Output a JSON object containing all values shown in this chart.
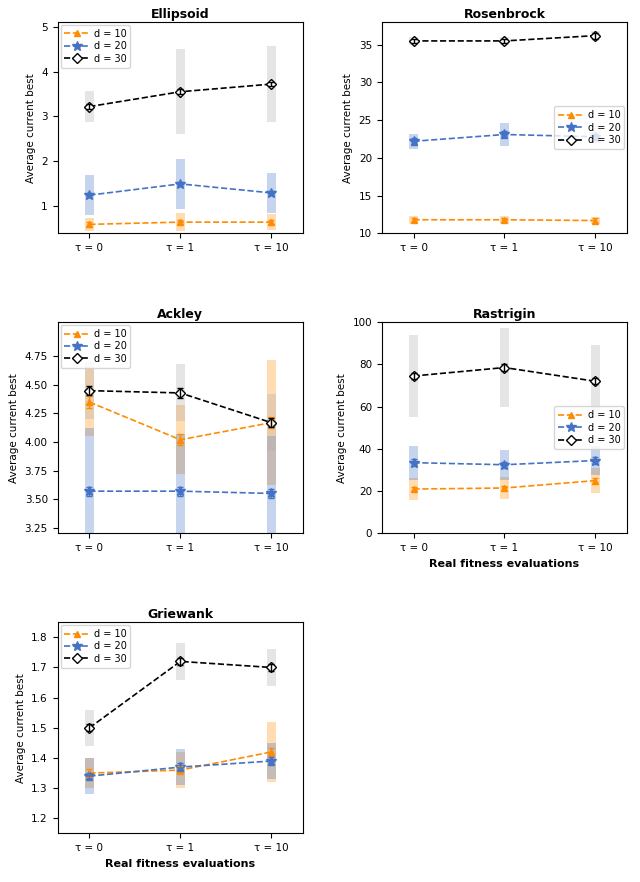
{
  "x_ticks": [
    0,
    1,
    2
  ],
  "x_labels": [
    "τ = 0",
    "τ = 1",
    "τ = 10"
  ],
  "xlabel": "Real fitness evaluations",
  "ylabel": "Average current best",
  "subplots": [
    {
      "title": "Ellipsoid",
      "ylim": [
        0.4,
        5.1
      ],
      "yticks": [
        1,
        2,
        3,
        4,
        5
      ],
      "series": [
        {
          "label": "d = 10",
          "color": "#FF8C00",
          "marker": "^",
          "y": [
            0.6,
            0.65,
            0.65
          ],
          "yerr": [
            0.05,
            0.05,
            0.05
          ],
          "bar_lo": [
            0.45,
            0.45,
            0.47
          ],
          "bar_hi": [
            0.75,
            0.85,
            0.83
          ],
          "bar_color": "#FF8C00"
        },
        {
          "label": "d = 20",
          "color": "#4472C4",
          "marker": "*",
          "y": [
            1.25,
            1.5,
            1.3
          ],
          "yerr": [
            0.05,
            0.05,
            0.05
          ],
          "bar_lo": [
            0.8,
            0.95,
            0.85
          ],
          "bar_hi": [
            1.7,
            2.05,
            1.75
          ],
          "bar_color": "#4472C4"
        },
        {
          "label": "d = 30",
          "color": "#000000",
          "marker": "D",
          "y": [
            3.22,
            3.55,
            3.72
          ],
          "yerr": [
            0.05,
            0.05,
            0.05
          ],
          "bar_lo": [
            2.87,
            2.6,
            2.87
          ],
          "bar_hi": [
            3.57,
            4.5,
            4.57
          ],
          "bar_color": "#AAAAAA"
        }
      ],
      "legend_loc": "upper left"
    },
    {
      "title": "Rosenbrock",
      "ylim": [
        10,
        38
      ],
      "yticks": [
        10,
        15,
        20,
        25,
        30,
        35
      ],
      "series": [
        {
          "label": "d = 10",
          "color": "#FF8C00",
          "marker": "^",
          "y": [
            11.8,
            11.8,
            11.7
          ],
          "yerr": [
            0.3,
            0.3,
            0.3
          ],
          "bar_lo": [
            11.3,
            11.3,
            11.2
          ],
          "bar_hi": [
            12.3,
            12.3,
            12.2
          ],
          "bar_color": "#FF8C00"
        },
        {
          "label": "d = 20",
          "color": "#4472C4",
          "marker": "*",
          "y": [
            22.2,
            23.1,
            22.8
          ],
          "yerr": [
            0.5,
            0.5,
            0.3
          ],
          "bar_lo": [
            21.2,
            21.6,
            22.0
          ],
          "bar_hi": [
            23.2,
            24.6,
            23.6
          ],
          "bar_color": "#4472C4"
        },
        {
          "label": "d = 30",
          "color": "#000000",
          "marker": "D",
          "y": [
            35.5,
            35.5,
            36.2
          ],
          "yerr": [
            0.3,
            0.3,
            0.4
          ],
          "bar_lo": [
            35.0,
            35.0,
            35.6
          ],
          "bar_hi": [
            36.0,
            36.0,
            36.8
          ],
          "bar_color": "#AAAAAA"
        }
      ],
      "legend_loc": "center right"
    },
    {
      "title": "Ackley",
      "ylim": [
        3.2,
        5.05
      ],
      "yticks": [
        3.25,
        3.5,
        3.75,
        4.0,
        4.25,
        4.5,
        4.75
      ],
      "series": [
        {
          "label": "d = 10",
          "color": "#FF8C00",
          "marker": "^",
          "y": [
            4.35,
            4.02,
            4.17
          ],
          "yerr": [
            0.05,
            0.05,
            0.05
          ],
          "bar_lo": [
            4.05,
            3.72,
            3.62
          ],
          "bar_hi": [
            4.65,
            4.32,
            4.72
          ],
          "bar_color": "#FF8C00"
        },
        {
          "label": "d = 20",
          "color": "#4472C4",
          "marker": "*",
          "y": [
            3.57,
            3.57,
            3.55
          ],
          "yerr": [
            0.04,
            0.04,
            0.04
          ],
          "bar_lo": [
            3.02,
            3.07,
            3.05
          ],
          "bar_hi": [
            4.12,
            4.07,
            4.05
          ],
          "bar_color": "#4472C4"
        },
        {
          "label": "d = 30",
          "color": "#000000",
          "marker": "D",
          "y": [
            4.45,
            4.43,
            4.17
          ],
          "yerr": [
            0.04,
            0.04,
            0.04
          ],
          "bar_lo": [
            4.2,
            4.18,
            3.92
          ],
          "bar_hi": [
            4.7,
            4.68,
            4.42
          ],
          "bar_color": "#AAAAAA"
        }
      ],
      "legend_loc": "upper left"
    },
    {
      "title": "Rastrigin",
      "ylim": [
        0,
        100
      ],
      "yticks": [
        0,
        20,
        40,
        60,
        80,
        100
      ],
      "series": [
        {
          "label": "d = 10",
          "color": "#FF8C00",
          "marker": "^",
          "y": [
            21.0,
            21.5,
            25.0
          ],
          "yerr": [
            1.0,
            1.0,
            1.0
          ],
          "bar_lo": [
            16.0,
            16.5,
            19.0
          ],
          "bar_hi": [
            26.0,
            26.5,
            31.0
          ],
          "bar_color": "#FF8C00"
        },
        {
          "label": "d = 20",
          "color": "#4472C4",
          "marker": "*",
          "y": [
            33.5,
            32.5,
            34.5
          ],
          "yerr": [
            1.5,
            1.5,
            1.5
          ],
          "bar_lo": [
            25.5,
            25.5,
            27.5
          ],
          "bar_hi": [
            41.5,
            39.5,
            41.5
          ],
          "bar_color": "#4472C4"
        },
        {
          "label": "d = 30",
          "color": "#000000",
          "marker": "D",
          "y": [
            74.5,
            78.5,
            72.0
          ],
          "yerr": [
            1.5,
            1.5,
            1.5
          ],
          "bar_lo": [
            55.0,
            60.0,
            55.0
          ],
          "bar_hi": [
            94.0,
            97.0,
            89.0
          ],
          "bar_color": "#AAAAAA"
        }
      ],
      "legend_loc": "center right"
    },
    {
      "title": "Griewank",
      "ylim": [
        1.15,
        1.85
      ],
      "yticks": [
        1.2,
        1.3,
        1.4,
        1.5,
        1.6,
        1.7,
        1.8
      ],
      "series": [
        {
          "label": "d = 10",
          "color": "#FF8C00",
          "marker": "^",
          "y": [
            1.35,
            1.36,
            1.42
          ],
          "yerr": [
            0.012,
            0.012,
            0.012
          ],
          "bar_lo": [
            1.3,
            1.3,
            1.32
          ],
          "bar_hi": [
            1.4,
            1.42,
            1.52
          ],
          "bar_color": "#FF8C00"
        },
        {
          "label": "d = 20",
          "color": "#4472C4",
          "marker": "*",
          "y": [
            1.34,
            1.37,
            1.39
          ],
          "yerr": [
            0.012,
            0.012,
            0.012
          ],
          "bar_lo": [
            1.28,
            1.31,
            1.33
          ],
          "bar_hi": [
            1.4,
            1.43,
            1.45
          ],
          "bar_color": "#4472C4"
        },
        {
          "label": "d = 30",
          "color": "#000000",
          "marker": "D",
          "y": [
            1.5,
            1.72,
            1.7
          ],
          "yerr": [
            0.012,
            0.012,
            0.012
          ],
          "bar_lo": [
            1.44,
            1.66,
            1.64
          ],
          "bar_hi": [
            1.56,
            1.78,
            1.76
          ],
          "bar_color": "#AAAAAA"
        }
      ],
      "legend_loc": "upper left"
    }
  ]
}
